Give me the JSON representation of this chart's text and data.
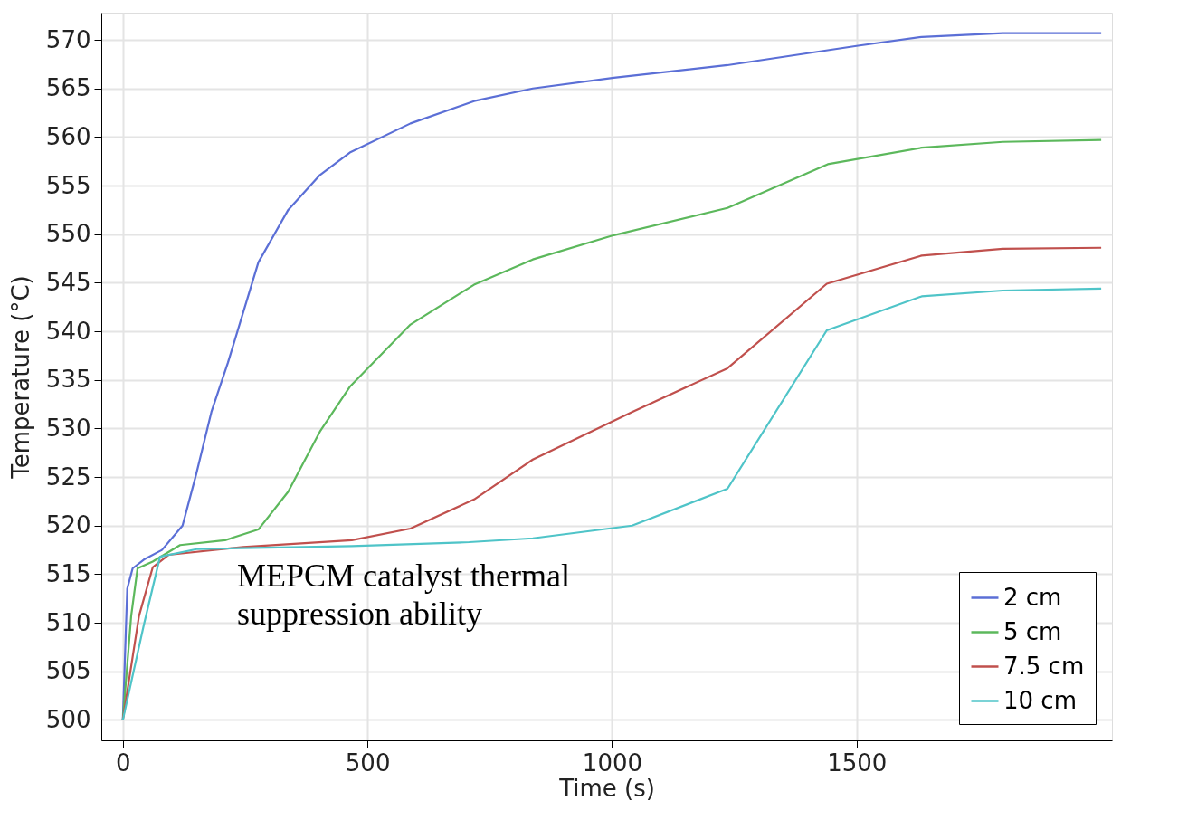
{
  "chart_data": {
    "type": "line",
    "xlabel": "Time (s)",
    "ylabel": "Temperature (°C)",
    "xlim": [
      -44,
      2022
    ],
    "ylim": [
      497.9,
      572.8
    ],
    "xticks": [
      0,
      500,
      1000,
      1500
    ],
    "yticks": [
      500,
      505,
      510,
      515,
      520,
      525,
      530,
      535,
      540,
      545,
      550,
      555,
      560,
      565,
      570
    ],
    "grid": true,
    "legend": "bottom right",
    "line_style": "solid",
    "marker": "none",
    "annotations": [
      "MEPCM catalyst thermal suppression ability"
    ],
    "series": [
      {
        "name": "2 cm",
        "color": "#5b6fd6",
        "x": [
          0,
          9,
          20,
          43,
          80,
          122,
          150,
          181,
          215,
          277,
          338,
          403,
          464,
          588,
          718,
          838,
          1004,
          1236,
          1503,
          1633,
          1799,
          2000
        ],
        "values": [
          500,
          513.5,
          515.6,
          516.5,
          517.5,
          520,
          525.3,
          531.7,
          536.8,
          547.1,
          552.5,
          556.1,
          558.4,
          561.4,
          563.7,
          565,
          566.1,
          567.4,
          569.4,
          570.3,
          570.7,
          570.7
        ]
      },
      {
        "name": "5 cm",
        "color": "#5cb85c",
        "x": [
          0,
          17,
          30,
          61,
          117,
          209,
          277,
          338,
          403,
          464,
          588,
          718,
          838,
          1004,
          1236,
          1441,
          1633,
          1799,
          2000
        ],
        "values": [
          500,
          510.7,
          515.6,
          516.3,
          518,
          518.5,
          519.6,
          523.5,
          529.7,
          534.3,
          540.7,
          544.8,
          547.4,
          549.9,
          552.7,
          557.2,
          558.9,
          559.5,
          559.7
        ]
      },
      {
        "name": "7.5 cm",
        "color": "#c0504d",
        "x": [
          0,
          33,
          61,
          94,
          246,
          468,
          588,
          718,
          838,
          1041,
          1236,
          1439,
          1633,
          1799,
          2000
        ],
        "values": [
          500,
          510.7,
          515.7,
          517,
          517.8,
          518.5,
          519.7,
          522.7,
          526.8,
          531.7,
          536.2,
          544.9,
          547.8,
          548.5,
          548.6
        ]
      },
      {
        "name": "10 cm",
        "color": "#4fc4c8",
        "x": [
          0,
          43,
          76,
          153,
          468,
          708,
          838,
          1041,
          1236,
          1439,
          1633,
          1799,
          2000
        ],
        "values": [
          500,
          509.8,
          516.8,
          517.6,
          517.9,
          518.3,
          518.7,
          520,
          523.8,
          540.1,
          543.6,
          544.2,
          544.4
        ]
      }
    ]
  }
}
